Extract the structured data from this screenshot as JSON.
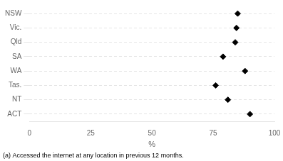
{
  "chart_data": {
    "type": "dot",
    "orientation": "horizontal",
    "categories": [
      "NSW",
      "Vic.",
      "Qld",
      "SA",
      "WA",
      "Tas.",
      "NT",
      "ACT"
    ],
    "values": [
      85.0,
      84.5,
      84.0,
      79.0,
      88.0,
      76.0,
      81.0,
      90.0
    ],
    "marker": "diamond",
    "color": "black",
    "xlim": [
      0,
      100
    ],
    "xticks": [
      0,
      25,
      50,
      75,
      100
    ],
    "xlabel": "%",
    "annotations": [
      "(a) Accessed the internet at any location in previous 12 months."
    ],
    "grid": true
  }
}
